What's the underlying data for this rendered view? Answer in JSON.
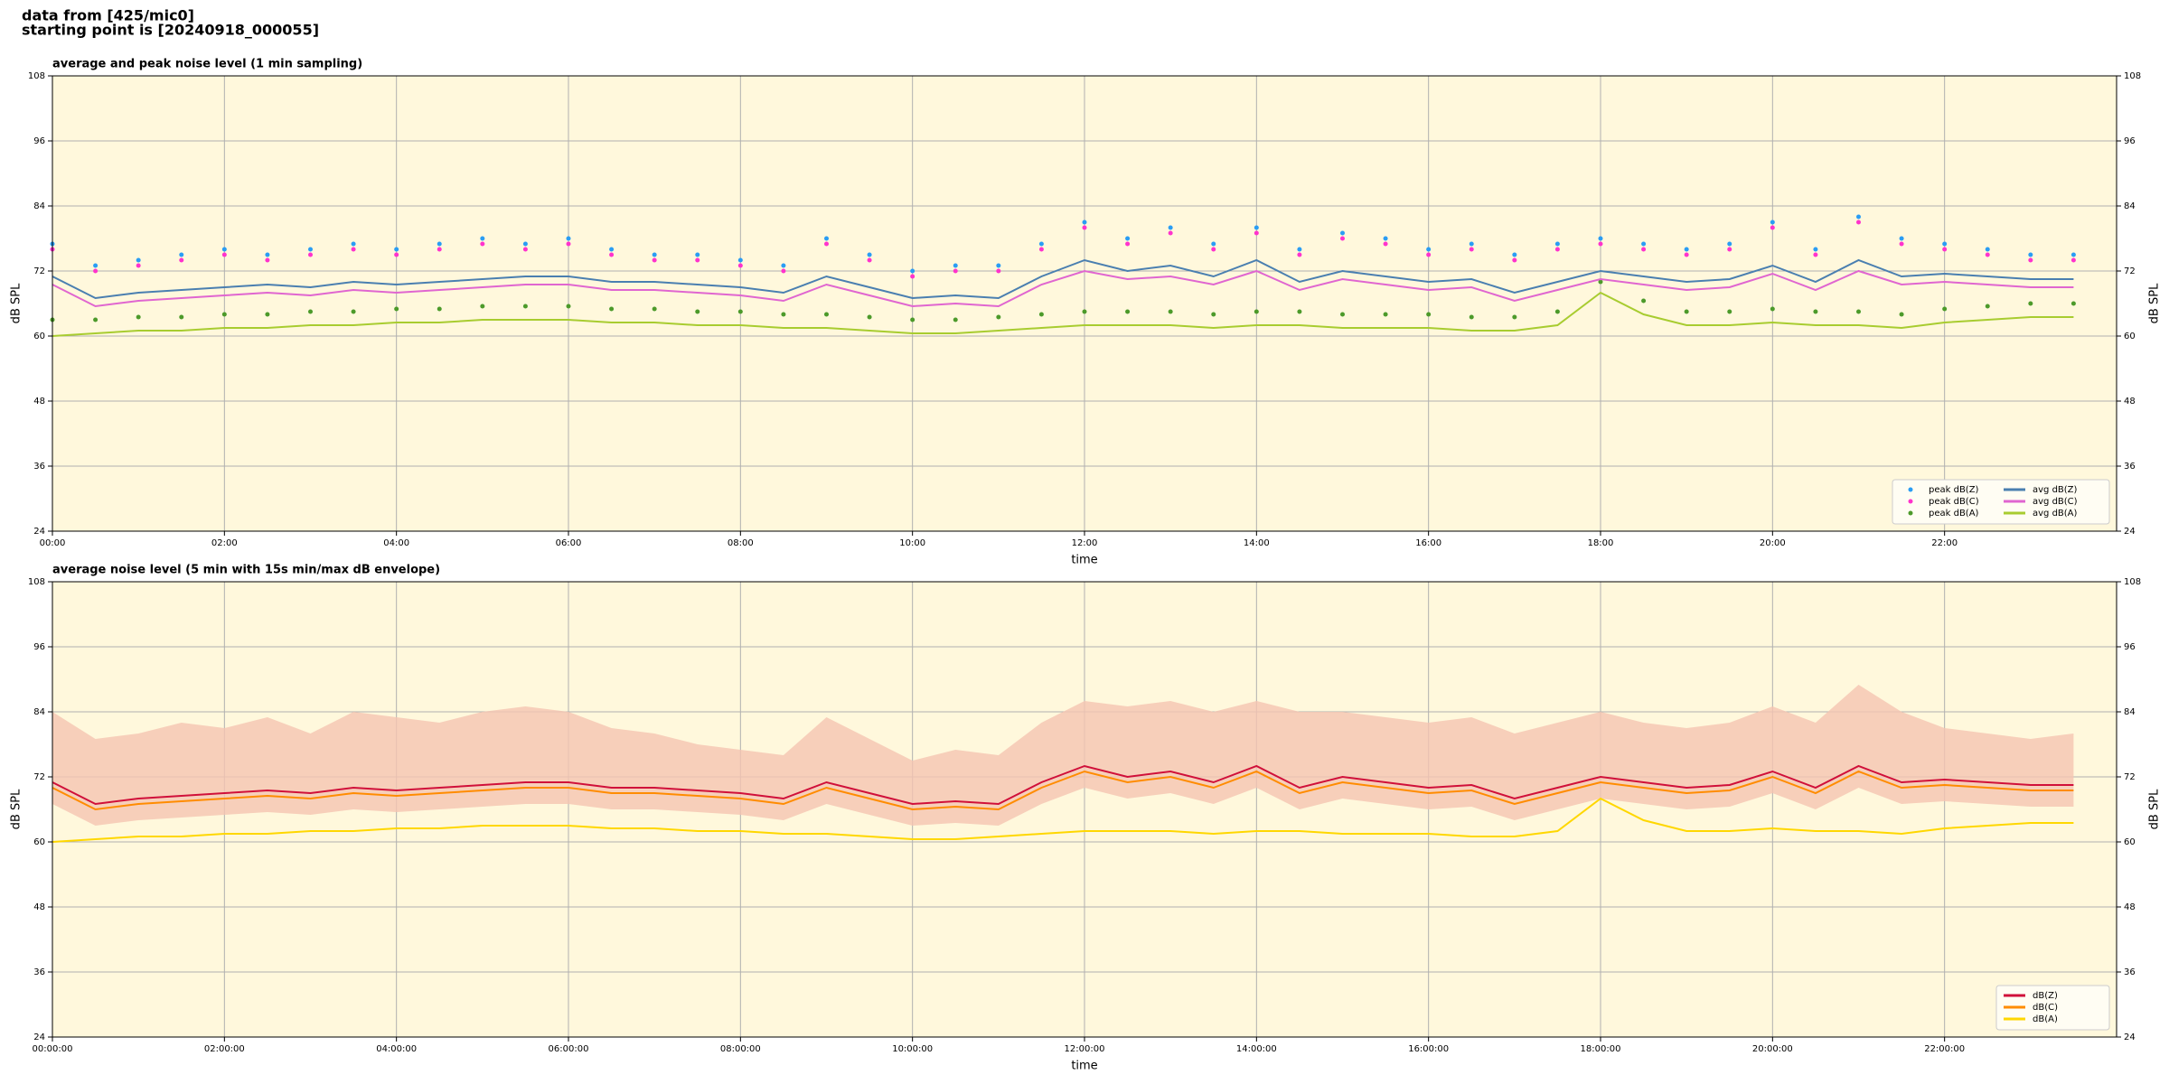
{
  "header": {
    "lines": [
      "data from [425/mic0]",
      "starting point is [20240918_000055]"
    ]
  },
  "chart_data": [
    {
      "type": "line",
      "title": "average and peak noise level (1 min sampling)",
      "xlabel": "time",
      "ylabel": "dB SPL",
      "xlim": [
        0,
        24
      ],
      "ylim": [
        24,
        108
      ],
      "yticks": [
        24,
        36,
        48,
        60,
        72,
        84,
        96,
        108
      ],
      "xticks": [
        {
          "value": 0,
          "label": "00:00"
        },
        {
          "value": 2,
          "label": "02:00"
        },
        {
          "value": 4,
          "label": "04:00"
        },
        {
          "value": 6,
          "label": "06:00"
        },
        {
          "value": 8,
          "label": "08:00"
        },
        {
          "value": 10,
          "label": "10:00"
        },
        {
          "value": 12,
          "label": "12:00"
        },
        {
          "value": 14,
          "label": "14:00"
        },
        {
          "value": 16,
          "label": "16:00"
        },
        {
          "value": 18,
          "label": "18:00"
        },
        {
          "value": 20,
          "label": "20:00"
        },
        {
          "value": 22,
          "label": "22:00"
        }
      ],
      "grid": true,
      "legend": "lower right",
      "background": "#fff8dc",
      "x": [
        0,
        0.5,
        1,
        1.5,
        2,
        2.5,
        3,
        3.5,
        4,
        4.5,
        5,
        5.5,
        6,
        6.5,
        7,
        7.5,
        8,
        8.5,
        9,
        9.5,
        10,
        10.5,
        11,
        11.5,
        12,
        12.5,
        13,
        13.5,
        14,
        14.5,
        15,
        15.5,
        16,
        16.5,
        17,
        17.5,
        18,
        18.5,
        19,
        19.5,
        20,
        20.5,
        21,
        21.5,
        22,
        22.5,
        23,
        23.5
      ],
      "series": [
        {
          "name": "peak dB(Z)",
          "type": "scatter",
          "color": "#2a9df4",
          "values": [
            77,
            73,
            74,
            75,
            76,
            75,
            76,
            77,
            76,
            77,
            78,
            77,
            78,
            76,
            75,
            75,
            74,
            73,
            78,
            75,
            72,
            73,
            73,
            77,
            81,
            78,
            80,
            77,
            80,
            76,
            79,
            78,
            76,
            77,
            75,
            77,
            78,
            77,
            76,
            77,
            81,
            76,
            82,
            78,
            77,
            76,
            75,
            75
          ]
        },
        {
          "name": "peak dB(C)",
          "type": "scatter",
          "color": "#ff33cc",
          "values": [
            76,
            72,
            73,
            74,
            75,
            74,
            75,
            76,
            75,
            76,
            77,
            76,
            77,
            75,
            74,
            74,
            73,
            72,
            77,
            74,
            71,
            72,
            72,
            76,
            80,
            77,
            79,
            76,
            79,
            75,
            78,
            77,
            75,
            76,
            74,
            76,
            77,
            76,
            75,
            76,
            80,
            75,
            81,
            77,
            76,
            75,
            74,
            74
          ]
        },
        {
          "name": "peak dB(A)",
          "type": "scatter",
          "color": "#4c9a2a",
          "values": [
            63,
            63,
            63.5,
            63.5,
            64,
            64,
            64.5,
            64.5,
            65,
            65,
            65.5,
            65.5,
            65.5,
            65,
            65,
            64.5,
            64.5,
            64,
            64,
            63.5,
            63,
            63,
            63.5,
            64,
            64.5,
            64.5,
            64.5,
            64,
            64.5,
            64.5,
            64,
            64,
            64,
            63.5,
            63.5,
            64.5,
            70,
            66.5,
            64.5,
            64.5,
            65,
            64.5,
            64.5,
            64,
            65,
            65.5,
            66,
            66
          ]
        },
        {
          "name": "avg dB(Z)",
          "type": "line",
          "color": "#4a7fb0",
          "values": [
            71,
            67,
            68,
            68.5,
            69,
            69.5,
            69,
            70,
            69.5,
            70,
            70.5,
            71,
            71,
            70,
            70,
            69.5,
            69,
            68,
            71,
            69,
            67,
            67.5,
            67,
            71,
            74,
            72,
            73,
            71,
            74,
            70,
            72,
            71,
            70,
            70.5,
            68,
            70,
            72,
            71,
            70,
            70.5,
            73,
            70,
            74,
            71,
            71.5,
            71,
            70.5,
            70.5
          ]
        },
        {
          "name": "avg dB(C)",
          "type": "line",
          "color": "#e066d0",
          "values": [
            69.5,
            65.5,
            66.5,
            67,
            67.5,
            68,
            67.5,
            68.5,
            68,
            68.5,
            69,
            69.5,
            69.5,
            68.5,
            68.5,
            68,
            67.5,
            66.5,
            69.5,
            67.5,
            65.5,
            66,
            65.5,
            69.5,
            72,
            70.5,
            71,
            69.5,
            72,
            68.5,
            70.5,
            69.5,
            68.5,
            69,
            66.5,
            68.5,
            70.5,
            69.5,
            68.5,
            69,
            71.5,
            68.5,
            72,
            69.5,
            70,
            69.5,
            69,
            69
          ]
        },
        {
          "name": "avg dB(A)",
          "type": "line",
          "color": "#a8cc30",
          "values": [
            60,
            60.5,
            61,
            61,
            61.5,
            61.5,
            62,
            62,
            62.5,
            62.5,
            63,
            63,
            63,
            62.5,
            62.5,
            62,
            62,
            61.5,
            61.5,
            61,
            60.5,
            60.5,
            61,
            61.5,
            62,
            62,
            62,
            61.5,
            62,
            62,
            61.5,
            61.5,
            61.5,
            61,
            61,
            62,
            68,
            64,
            62,
            62,
            62.5,
            62,
            62,
            61.5,
            62.5,
            63,
            63.5,
            63.5
          ]
        }
      ]
    },
    {
      "type": "line",
      "title": "average noise level (5 min with 15s min/max dB envelope)",
      "xlabel": "time",
      "ylabel": "dB SPL",
      "xlim": [
        0,
        24
      ],
      "ylim": [
        24,
        108
      ],
      "yticks": [
        24,
        36,
        48,
        60,
        72,
        84,
        96,
        108
      ],
      "xticks": [
        {
          "value": 0,
          "label": "00:00:00"
        },
        {
          "value": 2,
          "label": "02:00:00"
        },
        {
          "value": 4,
          "label": "04:00:00"
        },
        {
          "value": 6,
          "label": "06:00:00"
        },
        {
          "value": 8,
          "label": "08:00:00"
        },
        {
          "value": 10,
          "label": "10:00:00"
        },
        {
          "value": 12,
          "label": "12:00:00"
        },
        {
          "value": 14,
          "label": "14:00:00"
        },
        {
          "value": 16,
          "label": "16:00:00"
        },
        {
          "value": 18,
          "label": "18:00:00"
        },
        {
          "value": 20,
          "label": "20:00:00"
        },
        {
          "value": 22,
          "label": "22:00:00"
        }
      ],
      "grid": true,
      "legend": "lower right",
      "background": "#fff8dc",
      "x": [
        0,
        0.5,
        1,
        1.5,
        2,
        2.5,
        3,
        3.5,
        4,
        4.5,
        5,
        5.5,
        6,
        6.5,
        7,
        7.5,
        8,
        8.5,
        9,
        9.5,
        10,
        10.5,
        11,
        11.5,
        12,
        12.5,
        13,
        13.5,
        14,
        14.5,
        15,
        15.5,
        16,
        16.5,
        17,
        17.5,
        18,
        18.5,
        19,
        19.5,
        20,
        20.5,
        21,
        21.5,
        22,
        22.5,
        23,
        23.5
      ],
      "envelope": {
        "color": "#f5c4b2",
        "min": [
          67,
          63,
          64,
          64.5,
          65,
          65.5,
          65,
          66,
          65.5,
          66,
          66.5,
          67,
          67,
          66,
          66,
          65.5,
          65,
          64,
          67,
          65,
          63,
          63.5,
          63,
          67,
          70,
          68,
          69,
          67,
          70,
          66,
          68,
          67,
          66,
          66.5,
          64,
          66,
          68,
          67,
          66,
          66.5,
          69,
          66,
          70,
          67,
          67.5,
          67,
          66.5,
          66.5
        ],
        "max": [
          84,
          79,
          80,
          82,
          81,
          83,
          80,
          84,
          83,
          82,
          84,
          85,
          84,
          81,
          80,
          78,
          77,
          76,
          83,
          79,
          75,
          77,
          76,
          82,
          86,
          85,
          86,
          84,
          86,
          84,
          84,
          83,
          82,
          83,
          80,
          82,
          84,
          82,
          81,
          82,
          85,
          82,
          89,
          84,
          81,
          80,
          79,
          80
        ]
      },
      "series": [
        {
          "name": "dB(Z)",
          "type": "line",
          "color": "#d0103a",
          "values": [
            71,
            67,
            68,
            68.5,
            69,
            69.5,
            69,
            70,
            69.5,
            70,
            70.5,
            71,
            71,
            70,
            70,
            69.5,
            69,
            68,
            71,
            69,
            67,
            67.5,
            67,
            71,
            74,
            72,
            73,
            71,
            74,
            70,
            72,
            71,
            70,
            70.5,
            68,
            70,
            72,
            71,
            70,
            70.5,
            73,
            70,
            74,
            71,
            71.5,
            71,
            70.5,
            70.5
          ]
        },
        {
          "name": "dB(C)",
          "type": "line",
          "color": "#ff8c00",
          "values": [
            70,
            66,
            67,
            67.5,
            68,
            68.5,
            68,
            69,
            68.5,
            69,
            69.5,
            70,
            70,
            69,
            69,
            68.5,
            68,
            67,
            70,
            68,
            66,
            66.5,
            66,
            70,
            73,
            71,
            72,
            70,
            73,
            69,
            71,
            70,
            69,
            69.5,
            67,
            69,
            71,
            70,
            69,
            69.5,
            72,
            69,
            73,
            70,
            70.5,
            70,
            69.5,
            69.5
          ]
        },
        {
          "name": "dB(A)",
          "type": "line",
          "color": "#ffd700",
          "values": [
            60,
            60.5,
            61,
            61,
            61.5,
            61.5,
            62,
            62,
            62.5,
            62.5,
            63,
            63,
            63,
            62.5,
            62.5,
            62,
            62,
            61.5,
            61.5,
            61,
            60.5,
            60.5,
            61,
            61.5,
            62,
            62,
            62,
            61.5,
            62,
            62,
            61.5,
            61.5,
            61.5,
            61,
            61,
            62,
            68,
            64,
            62,
            62,
            62.5,
            62,
            62,
            61.5,
            62.5,
            63,
            63.5,
            63.5
          ]
        }
      ]
    }
  ]
}
